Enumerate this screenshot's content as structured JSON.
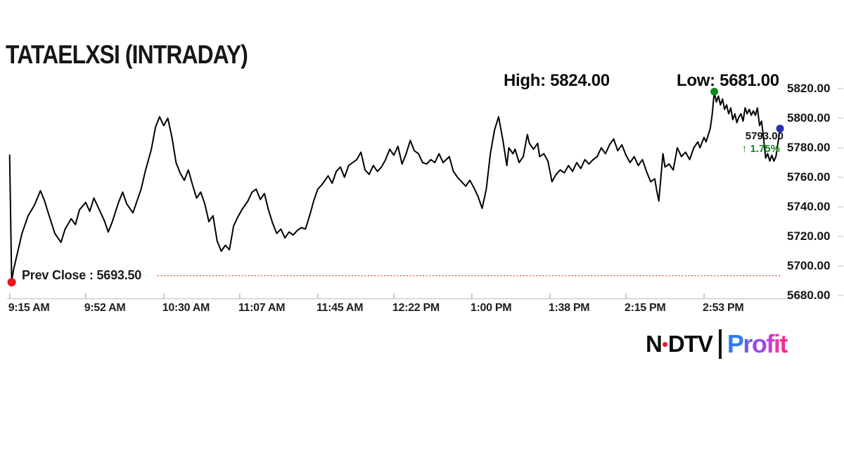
{
  "chart": {
    "title": "TATAELXSI (INTRADAY)",
    "high_label": "High: 5824.00",
    "low_label": "Low: 5681.00",
    "prev_close_label": "Prev Close : 5693.50",
    "last_price": "5793.00",
    "change_arrow": "↑",
    "change_pct": "1.75%",
    "colors": {
      "line": "#000000",
      "prev_close_line": "#e03a3a",
      "prev_close_dot": "#e8141e",
      "high_dot": "#0f8a1d",
      "last_dot": "#2432b0",
      "change_text": "#14891e",
      "axis": "#c8c8c8",
      "tick": "#b5b5b5"
    }
  },
  "chart_data": {
    "type": "line",
    "title": "TATAELXSI (INTRADAY)",
    "symbol": "TATAELXSI",
    "session": "intraday",
    "high": 5824.0,
    "low": 5681.0,
    "prev_close": 5693.5,
    "last": 5793.0,
    "change_pct": 1.75,
    "ylim": [
      5680,
      5830
    ],
    "grid": false,
    "y_axis_side": "right",
    "y_ticks": [
      5820,
      5800,
      5780,
      5760,
      5740,
      5720,
      5700,
      5680
    ],
    "y_tick_format": "0.00",
    "x_unit": "minutes_after_9:15_AM",
    "x_ticks": [
      {
        "label": "9:15 AM",
        "minute": 0
      },
      {
        "label": "9:52 AM",
        "minute": 37
      },
      {
        "label": "10:30 AM",
        "minute": 75
      },
      {
        "label": "11:07 AM",
        "minute": 112
      },
      {
        "label": "11:45 AM",
        "minute": 150
      },
      {
        "label": "12:22 PM",
        "minute": 187
      },
      {
        "label": "1:00 PM",
        "minute": 225
      },
      {
        "label": "1:38 PM",
        "minute": 263
      },
      {
        "label": "2:15 PM",
        "minute": 300
      },
      {
        "label": "2:53 PM",
        "minute": 338
      }
    ],
    "markers": {
      "session_open_dot": {
        "minute": 1,
        "price": 5690,
        "meaning": "open dip near prev close"
      },
      "session_high_dot": {
        "minute": 343,
        "price": 5818,
        "meaning": "day high region"
      },
      "last_trade_dot": {
        "minute": 375,
        "price": 5793,
        "meaning": "last traded price"
      }
    },
    "prev_close_line": {
      "price": 5693.5,
      "style": "dotted-red"
    },
    "points": [
      [
        0,
        5775
      ],
      [
        1,
        5690
      ],
      [
        2,
        5698
      ],
      [
        4,
        5710
      ],
      [
        6,
        5722
      ],
      [
        9,
        5734
      ],
      [
        12,
        5741
      ],
      [
        15,
        5751
      ],
      [
        17,
        5744
      ],
      [
        19,
        5735
      ],
      [
        22,
        5722
      ],
      [
        25,
        5716
      ],
      [
        27,
        5725
      ],
      [
        30,
        5732
      ],
      [
        32,
        5728
      ],
      [
        34,
        5738
      ],
      [
        37,
        5743
      ],
      [
        39,
        5737
      ],
      [
        41,
        5746
      ],
      [
        43,
        5740
      ],
      [
        46,
        5731
      ],
      [
        48,
        5723
      ],
      [
        50,
        5730
      ],
      [
        53,
        5743
      ],
      [
        55,
        5750
      ],
      [
        57,
        5742
      ],
      [
        60,
        5736
      ],
      [
        62,
        5744
      ],
      [
        64,
        5752
      ],
      [
        66,
        5764
      ],
      [
        69,
        5779
      ],
      [
        71,
        5794
      ],
      [
        73,
        5801
      ],
      [
        75,
        5795
      ],
      [
        77,
        5800
      ],
      [
        79,
        5787
      ],
      [
        81,
        5770
      ],
      [
        83,
        5763
      ],
      [
        85,
        5758
      ],
      [
        87,
        5765
      ],
      [
        89,
        5755
      ],
      [
        91,
        5746
      ],
      [
        93,
        5750
      ],
      [
        95,
        5742
      ],
      [
        97,
        5730
      ],
      [
        99,
        5734
      ],
      [
        101,
        5717
      ],
      [
        103,
        5710
      ],
      [
        105,
        5714
      ],
      [
        107,
        5711
      ],
      [
        109,
        5727
      ],
      [
        111,
        5733
      ],
      [
        113,
        5738
      ],
      [
        116,
        5744
      ],
      [
        118,
        5750
      ],
      [
        120,
        5752
      ],
      [
        122,
        5745
      ],
      [
        124,
        5749
      ],
      [
        126,
        5738
      ],
      [
        128,
        5729
      ],
      [
        130,
        5722
      ],
      [
        132,
        5725
      ],
      [
        134,
        5719
      ],
      [
        136,
        5723
      ],
      [
        138,
        5721
      ],
      [
        140,
        5724
      ],
      [
        142,
        5726
      ],
      [
        144,
        5725
      ],
      [
        146,
        5734
      ],
      [
        148,
        5744
      ],
      [
        150,
        5752
      ],
      [
        152,
        5755
      ],
      [
        155,
        5761
      ],
      [
        157,
        5756
      ],
      [
        159,
        5764
      ],
      [
        161,
        5767
      ],
      [
        163,
        5760
      ],
      [
        165,
        5768
      ],
      [
        167,
        5770
      ],
      [
        169,
        5772
      ],
      [
        171,
        5777
      ],
      [
        173,
        5765
      ],
      [
        175,
        5762
      ],
      [
        177,
        5768
      ],
      [
        179,
        5764
      ],
      [
        181,
        5767
      ],
      [
        183,
        5772
      ],
      [
        185,
        5779
      ],
      [
        187,
        5775
      ],
      [
        189,
        5781
      ],
      [
        191,
        5769
      ],
      [
        193,
        5776
      ],
      [
        195,
        5785
      ],
      [
        197,
        5778
      ],
      [
        199,
        5776
      ],
      [
        201,
        5770
      ],
      [
        203,
        5769
      ],
      [
        205,
        5772
      ],
      [
        207,
        5770
      ],
      [
        209,
        5776
      ],
      [
        211,
        5770
      ],
      [
        214,
        5774
      ],
      [
        216,
        5764
      ],
      [
        218,
        5760
      ],
      [
        220,
        5757
      ],
      [
        222,
        5754
      ],
      [
        224,
        5758
      ],
      [
        226,
        5753
      ],
      [
        228,
        5747
      ],
      [
        230,
        5739
      ],
      [
        232,
        5752
      ],
      [
        234,
        5776
      ],
      [
        236,
        5792
      ],
      [
        238,
        5801
      ],
      [
        240,
        5786
      ],
      [
        242,
        5768
      ],
      [
        243,
        5780
      ],
      [
        245,
        5776
      ],
      [
        246,
        5779
      ],
      [
        248,
        5770
      ],
      [
        250,
        5774
      ],
      [
        252,
        5789
      ],
      [
        253,
        5783
      ],
      [
        255,
        5779
      ],
      [
        257,
        5783
      ],
      [
        258,
        5774
      ],
      [
        260,
        5776
      ],
      [
        262,
        5771
      ],
      [
        264,
        5757
      ],
      [
        266,
        5762
      ],
      [
        268,
        5765
      ],
      [
        270,
        5763
      ],
      [
        272,
        5768
      ],
      [
        274,
        5764
      ],
      [
        276,
        5770
      ],
      [
        278,
        5766
      ],
      [
        280,
        5772
      ],
      [
        282,
        5769
      ],
      [
        284,
        5772
      ],
      [
        286,
        5774
      ],
      [
        288,
        5780
      ],
      [
        290,
        5776
      ],
      [
        292,
        5782
      ],
      [
        294,
        5786
      ],
      [
        296,
        5778
      ],
      [
        298,
        5782
      ],
      [
        300,
        5775
      ],
      [
        302,
        5770
      ],
      [
        304,
        5774
      ],
      [
        306,
        5768
      ],
      [
        308,
        5772
      ],
      [
        310,
        5764
      ],
      [
        312,
        5757
      ],
      [
        314,
        5759
      ],
      [
        315,
        5751
      ],
      [
        316,
        5744
      ],
      [
        318,
        5776
      ],
      [
        319,
        5767
      ],
      [
        321,
        5769
      ],
      [
        323,
        5765
      ],
      [
        325,
        5780
      ],
      [
        327,
        5774
      ],
      [
        329,
        5777
      ],
      [
        331,
        5772
      ],
      [
        333,
        5780
      ],
      [
        335,
        5784
      ],
      [
        336,
        5780
      ],
      [
        338,
        5787
      ],
      [
        339,
        5784
      ],
      [
        341,
        5793
      ],
      [
        342,
        5803
      ],
      [
        343,
        5818
      ],
      [
        344,
        5811
      ],
      [
        345,
        5815
      ],
      [
        346,
        5809
      ],
      [
        347,
        5813
      ],
      [
        348,
        5806
      ],
      [
        349,
        5809
      ],
      [
        350,
        5803
      ],
      [
        351,
        5807
      ],
      [
        352,
        5799
      ],
      [
        353,
        5803
      ],
      [
        354,
        5797
      ],
      [
        355,
        5801
      ],
      [
        356,
        5803
      ],
      [
        357,
        5798
      ],
      [
        358,
        5807
      ],
      [
        359,
        5803
      ],
      [
        360,
        5806
      ],
      [
        361,
        5802
      ],
      [
        362,
        5805
      ],
      [
        363,
        5802
      ],
      [
        364,
        5807
      ],
      [
        365,
        5795
      ],
      [
        366,
        5798
      ],
      [
        367,
        5786
      ],
      [
        368,
        5773
      ],
      [
        369,
        5776
      ],
      [
        370,
        5771
      ],
      [
        371,
        5775
      ],
      [
        372,
        5771
      ],
      [
        373,
        5774
      ],
      [
        375,
        5793
      ]
    ]
  },
  "logo": {
    "ndtv_prefix": "N",
    "ndtv_suffix": "DTV",
    "separator": "|",
    "profit_letters": [
      {
        "ch": "P",
        "color": "#2f7bf6"
      },
      {
        "ch": "r",
        "color": "#6a5cf2"
      },
      {
        "ch": "o",
        "color": "#9a49e8"
      },
      {
        "ch": "f",
        "color": "#c43ed8"
      },
      {
        "ch": "i",
        "color": "#e93aa8"
      },
      {
        "ch": "t",
        "color": "#f62e8a"
      }
    ]
  }
}
